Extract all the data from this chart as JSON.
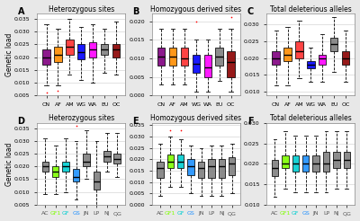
{
  "panels": [
    {
      "label": "A",
      "title": "Heterozygous sites",
      "categories": [
        "CN",
        "AF",
        "AM",
        "WG",
        "WA",
        "EU",
        "OC"
      ],
      "colors": [
        "#800080",
        "#FF8C00",
        "#FF3030",
        "#0000FF",
        "#FF00FF",
        "#808080",
        "#8B0000"
      ],
      "medians": [
        0.02,
        0.021,
        0.024,
        0.022,
        0.023,
        0.023,
        0.023
      ],
      "q1": [
        0.017,
        0.018,
        0.021,
        0.019,
        0.02,
        0.021,
        0.02
      ],
      "q3": [
        0.023,
        0.024,
        0.027,
        0.025,
        0.026,
        0.025,
        0.025
      ],
      "whislo": [
        0.009,
        0.009,
        0.013,
        0.011,
        0.01,
        0.014,
        0.013
      ],
      "whishi": [
        0.033,
        0.031,
        0.035,
        0.032,
        0.033,
        0.031,
        0.034
      ],
      "fliers_low": [
        0.006,
        0.007,
        null,
        null,
        null,
        null,
        null
      ],
      "fliers_high": [
        null,
        null,
        null,
        null,
        null,
        null,
        null
      ],
      "ylim": [
        0.005,
        0.037
      ],
      "yticks": [
        0.005,
        0.01,
        0.015,
        0.02,
        0.025,
        0.03,
        0.035
      ],
      "ylabel": "Genetic load",
      "row": 0,
      "col": 0
    },
    {
      "label": "B",
      "title": "Homozygous derived sites",
      "categories": [
        "CN",
        "AF",
        "AM",
        "WG",
        "WA",
        "EU",
        "OC"
      ],
      "colors": [
        "#800080",
        "#FF8C00",
        "#FF3030",
        "#0000FF",
        "#FF00FF",
        "#808080",
        "#8B0000"
      ],
      "medians": [
        0.0105,
        0.0105,
        0.01,
        0.0085,
        0.0075,
        0.0105,
        0.009
      ],
      "q1": [
        0.008,
        0.008,
        0.008,
        0.006,
        0.005,
        0.008,
        0.005
      ],
      "q3": [
        0.013,
        0.013,
        0.013,
        0.011,
        0.011,
        0.013,
        0.012
      ],
      "whislo": [
        0.003,
        0.003,
        0.003,
        0.001,
        0.001,
        0.004,
        0.001
      ],
      "whishi": [
        0.018,
        0.018,
        0.018,
        0.015,
        0.015,
        0.018,
        0.018
      ],
      "fliers_low": [
        null,
        null,
        null,
        null,
        null,
        null,
        null
      ],
      "fliers_high": [
        null,
        null,
        null,
        0.02,
        null,
        null,
        0.021
      ],
      "ylim": [
        0.0,
        0.022
      ],
      "yticks": [
        0.0,
        0.005,
        0.01,
        0.015,
        0.02
      ],
      "ylabel": "",
      "row": 0,
      "col": 1
    },
    {
      "label": "C",
      "title": "Total deleterious alleles",
      "categories": [
        "CN",
        "AF",
        "AM",
        "WG",
        "WA",
        "EU",
        "OC"
      ],
      "colors": [
        "#800080",
        "#FF8C00",
        "#FF3030",
        "#0000FF",
        "#FF00FF",
        "#808080",
        "#8B0000"
      ],
      "medians": [
        0.02,
        0.021,
        0.022,
        0.018,
        0.02,
        0.024,
        0.02
      ],
      "q1": [
        0.018,
        0.019,
        0.02,
        0.017,
        0.018,
        0.022,
        0.018
      ],
      "q3": [
        0.022,
        0.023,
        0.025,
        0.019,
        0.021,
        0.026,
        0.022
      ],
      "whislo": [
        0.012,
        0.012,
        0.014,
        0.013,
        0.013,
        0.016,
        0.013
      ],
      "whishi": [
        0.028,
        0.029,
        0.031,
        0.023,
        0.027,
        0.032,
        0.028
      ],
      "fliers_low": [
        null,
        null,
        null,
        null,
        null,
        null,
        null
      ],
      "fliers_high": [
        null,
        null,
        null,
        null,
        null,
        null,
        null
      ],
      "ylim": [
        0.009,
        0.033
      ],
      "yticks": [
        0.01,
        0.015,
        0.02,
        0.025,
        0.03
      ],
      "ylabel": "",
      "row": 0,
      "col": 2
    },
    {
      "label": "D",
      "title": "Heterozygous sites",
      "categories": [
        "AC",
        "GF1",
        "GF",
        "GS",
        "JN",
        "LP",
        "NJ",
        "QG"
      ],
      "colors": [
        "#808080",
        "#7FFF00",
        "#00CED1",
        "#1E90FF",
        "#808080",
        "#808080",
        "#808080",
        "#808080"
      ],
      "cat_colors": [
        "#555555",
        "#7FFF00",
        "#00CED1",
        "#1E90FF",
        "#555555",
        "#555555",
        "#555555",
        "#555555"
      ],
      "medians": [
        0.02,
        0.018,
        0.02,
        0.016,
        0.022,
        0.014,
        0.024,
        0.023
      ],
      "q1": [
        0.018,
        0.016,
        0.018,
        0.014,
        0.02,
        0.011,
        0.022,
        0.021
      ],
      "q3": [
        0.022,
        0.02,
        0.022,
        0.019,
        0.025,
        0.018,
        0.026,
        0.025
      ],
      "whislo": [
        0.009,
        0.009,
        0.01,
        0.007,
        0.015,
        0.005,
        0.018,
        0.016
      ],
      "whishi": [
        0.031,
        0.028,
        0.031,
        0.03,
        0.034,
        0.03,
        0.033,
        0.033
      ],
      "fliers_low": [
        null,
        null,
        null,
        null,
        null,
        null,
        null,
        null
      ],
      "fliers_high": [
        null,
        null,
        null,
        0.036,
        null,
        null,
        null,
        null
      ],
      "ylim": [
        0.005,
        0.037
      ],
      "yticks": [
        0.005,
        0.01,
        0.015,
        0.02,
        0.025,
        0.03,
        0.035
      ],
      "ylabel": "Genetic load",
      "row": 1,
      "col": 0
    },
    {
      "label": "E",
      "title": "Homozygous derived sites",
      "categories": [
        "AC",
        "GF1",
        "GF",
        "GS",
        "JN",
        "LP",
        "NJ",
        "QG"
      ],
      "colors": [
        "#808080",
        "#7FFF00",
        "#00CED1",
        "#1E90FF",
        "#808080",
        "#808080",
        "#808080",
        "#808080"
      ],
      "cat_colors": [
        "#555555",
        "#7FFF00",
        "#00CED1",
        "#1E90FF",
        "#555555",
        "#555555",
        "#555555",
        "#555555"
      ],
      "medians": [
        0.016,
        0.019,
        0.019,
        0.017,
        0.016,
        0.017,
        0.017,
        0.018
      ],
      "q1": [
        0.012,
        0.016,
        0.016,
        0.013,
        0.012,
        0.012,
        0.012,
        0.013
      ],
      "q3": [
        0.019,
        0.022,
        0.022,
        0.02,
        0.019,
        0.02,
        0.02,
        0.021
      ],
      "whislo": [
        0.004,
        0.008,
        0.008,
        0.005,
        0.004,
        0.004,
        0.004,
        0.005
      ],
      "whishi": [
        0.027,
        0.03,
        0.029,
        0.026,
        0.025,
        0.026,
        0.026,
        0.027
      ],
      "fliers_low": [
        null,
        null,
        null,
        null,
        null,
        null,
        null,
        null
      ],
      "fliers_high": [
        null,
        0.033,
        0.033,
        null,
        null,
        null,
        null,
        null
      ],
      "ylim": [
        0.0,
        0.036
      ],
      "yticks": [
        0.0,
        0.005,
        0.01,
        0.015,
        0.02,
        0.025,
        0.03,
        0.035
      ],
      "ylabel": "",
      "row": 1,
      "col": 1
    },
    {
      "label": "F",
      "title": "Total deleterious alleles",
      "categories": [
        "AC",
        "GF1",
        "GF",
        "GS",
        "JN",
        "LP",
        "NJ",
        "QG"
      ],
      "colors": [
        "#808080",
        "#7FFF00",
        "#00CED1",
        "#1E90FF",
        "#808080",
        "#808080",
        "#808080",
        "#808080"
      ],
      "cat_colors": [
        "#555555",
        "#7FFF00",
        "#00CED1",
        "#1E90FF",
        "#555555",
        "#555555",
        "#555555",
        "#555555"
      ],
      "medians": [
        0.019,
        0.02,
        0.02,
        0.02,
        0.02,
        0.02,
        0.021,
        0.021
      ],
      "q1": [
        0.017,
        0.019,
        0.018,
        0.018,
        0.018,
        0.018,
        0.019,
        0.019
      ],
      "q3": [
        0.021,
        0.022,
        0.022,
        0.022,
        0.022,
        0.023,
        0.023,
        0.023
      ],
      "whislo": [
        0.012,
        0.014,
        0.013,
        0.013,
        0.013,
        0.013,
        0.014,
        0.014
      ],
      "whishi": [
        0.026,
        0.028,
        0.027,
        0.027,
        0.027,
        0.028,
        0.028,
        0.028
      ],
      "fliers_low": [
        null,
        null,
        null,
        null,
        null,
        null,
        null,
        null
      ],
      "fliers_high": [
        null,
        null,
        null,
        null,
        null,
        null,
        null,
        null
      ],
      "ylim": [
        0.01,
        0.03
      ],
      "yticks": [
        0.01,
        0.015,
        0.02,
        0.025,
        0.03
      ],
      "ylabel": "",
      "row": 1,
      "col": 2
    }
  ],
  "fig_bg": "#e8e8e8",
  "panel_bg": "#ffffff",
  "median_color": "#000000",
  "whisker_color": "#000000",
  "flier_color": "#ff0000",
  "tick_fontsize": 4.5,
  "label_fontsize": 5.5,
  "title_fontsize": 5.5,
  "panel_label_fontsize": 7
}
